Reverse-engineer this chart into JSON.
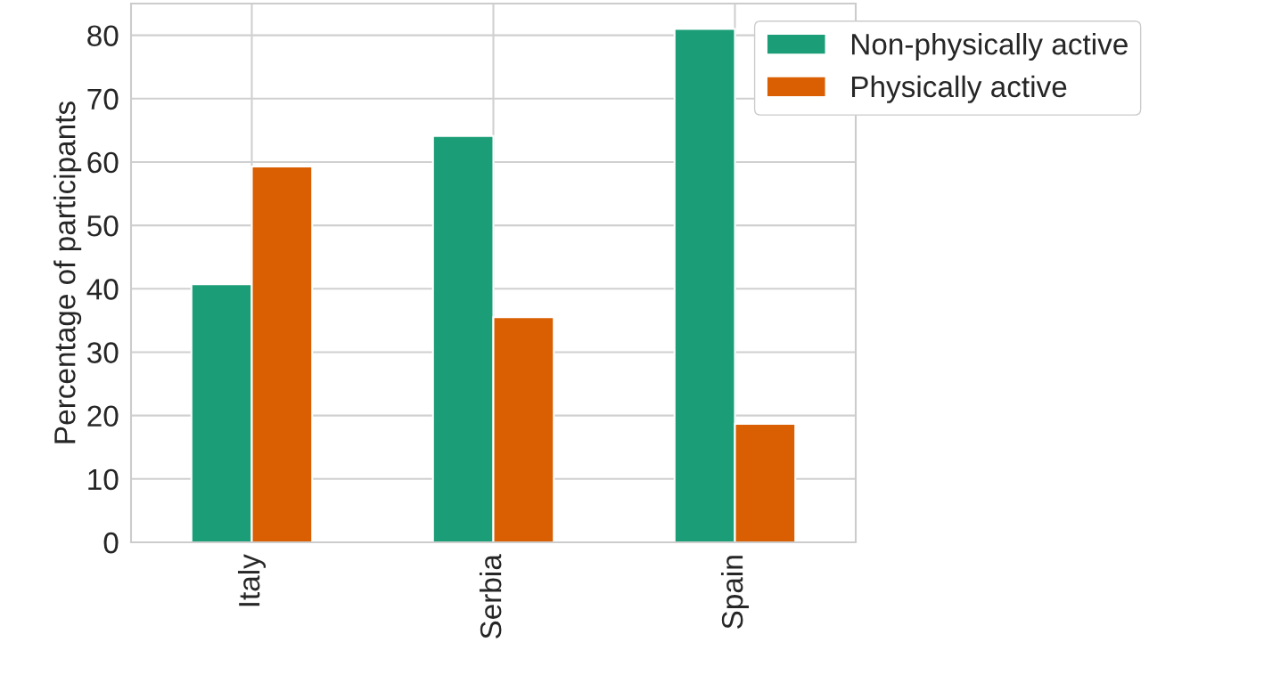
{
  "chart_data": {
    "type": "bar",
    "ylabel": "Percentage of participants",
    "categories": [
      "Italy",
      "Serbia",
      "Spain"
    ],
    "series": [
      {
        "name": "Non-physically active",
        "color": "#1b9e77",
        "values": [
          40.7,
          64.1,
          81
        ]
      },
      {
        "name": "Physically active",
        "color": "#d95f02",
        "values": [
          59.3,
          35.5,
          18.7
        ]
      }
    ],
    "ylim": [
      0,
      85
    ],
    "yticks": [
      0,
      10,
      20,
      30,
      40,
      50,
      60,
      70,
      80
    ],
    "grid": true,
    "legend": "top right"
  }
}
